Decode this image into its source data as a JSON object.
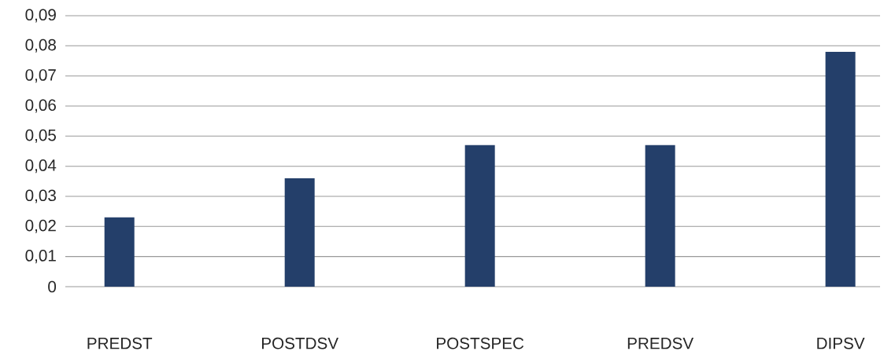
{
  "chart_data": {
    "type": "bar",
    "categories": [
      "PREDST",
      "POSTDSV",
      "POSTSPEC",
      "PREDSV",
      "DIPSV"
    ],
    "values": [
      0.023,
      0.036,
      0.047,
      0.047,
      0.078
    ],
    "color": "#243f6a",
    "ylim": [
      0,
      0.09
    ],
    "yticks": [
      {
        "value": 0,
        "label": "0"
      },
      {
        "value": 0.01,
        "label": "0,01"
      },
      {
        "value": 0.02,
        "label": "0,02"
      },
      {
        "value": 0.03,
        "label": "0,03"
      },
      {
        "value": 0.04,
        "label": "0,04"
      },
      {
        "value": 0.05,
        "label": "0,05"
      },
      {
        "value": 0.06,
        "label": "0,06"
      },
      {
        "value": 0.07,
        "label": "0,07"
      },
      {
        "value": 0.08,
        "label": "0,08"
      },
      {
        "value": 0.09,
        "label": "0,09"
      }
    ],
    "grid": "y"
  }
}
